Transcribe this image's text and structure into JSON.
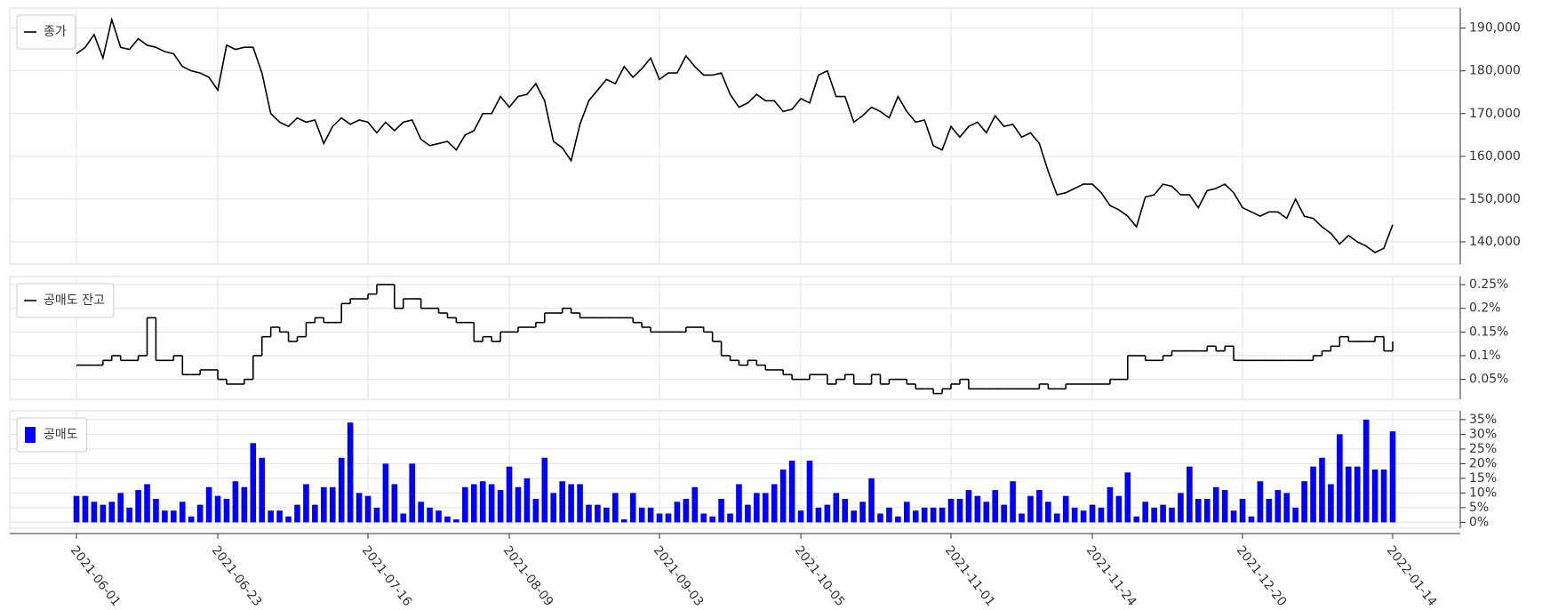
{
  "chart_data": [
    {
      "type": "line",
      "series": [
        {
          "name": "종가",
          "color": "#000000",
          "values": [
            184000,
            185500,
            188500,
            183000,
            192000,
            185500,
            185000,
            187500,
            186000,
            185500,
            184500,
            184000,
            181000,
            180000,
            179500,
            178500,
            175500,
            186000,
            185000,
            185500,
            185500,
            179500,
            170000,
            168000,
            167000,
            169000,
            168000,
            168500,
            163000,
            167000,
            169000,
            167500,
            168500,
            168000,
            165500,
            168000,
            166000,
            168000,
            168500,
            164000,
            162500,
            163000,
            163500,
            161500,
            165000,
            166000,
            170000,
            170000,
            174000,
            171500,
            174000,
            174500,
            177000,
            173000,
            163500,
            162000,
            159000,
            167500,
            173000,
            175500,
            178000,
            177000,
            181000,
            178500,
            180500,
            183000,
            178000,
            179500,
            179500,
            183500,
            181000,
            179000,
            179000,
            179500,
            174500,
            171500,
            172500,
            174500,
            173000,
            173000,
            170500,
            171000,
            173500,
            172500,
            179000,
            180000,
            174000,
            174000,
            168000,
            169500,
            171500,
            170500,
            169000,
            174000,
            170500,
            168000,
            168500,
            162500,
            161500,
            167000,
            164500,
            167000,
            168000,
            165500,
            169500,
            167000,
            167500,
            164500,
            165500,
            163000,
            156500,
            151000,
            151500,
            152500,
            153500,
            153500,
            151500,
            148500,
            147500,
            146000,
            143500,
            150500,
            151000,
            153500,
            153000,
            151000,
            151000,
            148000,
            152000,
            152500,
            153500,
            151500,
            148000,
            147000,
            146000,
            147000,
            147000,
            145500,
            150000,
            146000,
            145500,
            143500,
            142000,
            139500,
            141500,
            140000,
            139000,
            137500,
            138500,
            144000
          ]
        }
      ],
      "ylim": [
        134800,
        194700
      ],
      "yticks": [
        {
          "value": 140000,
          "label": "140,000"
        },
        {
          "value": 150000,
          "label": "150,000"
        },
        {
          "value": 160000,
          "label": "160,000"
        },
        {
          "value": 170000,
          "label": "170,000"
        },
        {
          "value": 180000,
          "label": "180,000"
        },
        {
          "value": 190000,
          "label": "190,000"
        }
      ],
      "grid": true,
      "legend": "upper-left"
    },
    {
      "type": "step",
      "series": [
        {
          "name": "공매도 잔고",
          "color": "#000000",
          "values": [
            0.08,
            0.08,
            0.08,
            0.09,
            0.1,
            0.09,
            0.09,
            0.1,
            0.18,
            0.09,
            0.09,
            0.1,
            0.06,
            0.06,
            0.07,
            0.07,
            0.05,
            0.04,
            0.04,
            0.05,
            0.1,
            0.14,
            0.16,
            0.15,
            0.13,
            0.14,
            0.17,
            0.18,
            0.17,
            0.17,
            0.21,
            0.22,
            0.22,
            0.23,
            0.25,
            0.25,
            0.2,
            0.22,
            0.22,
            0.2,
            0.2,
            0.19,
            0.18,
            0.17,
            0.17,
            0.13,
            0.14,
            0.13,
            0.15,
            0.15,
            0.16,
            0.16,
            0.17,
            0.19,
            0.19,
            0.2,
            0.19,
            0.18,
            0.18,
            0.18,
            0.18,
            0.18,
            0.18,
            0.17,
            0.16,
            0.15,
            0.15,
            0.15,
            0.15,
            0.16,
            0.16,
            0.15,
            0.13,
            0.1,
            0.09,
            0.08,
            0.09,
            0.08,
            0.07,
            0.07,
            0.06,
            0.05,
            0.05,
            0.06,
            0.06,
            0.04,
            0.05,
            0.06,
            0.04,
            0.04,
            0.06,
            0.04,
            0.05,
            0.05,
            0.04,
            0.03,
            0.03,
            0.02,
            0.03,
            0.04,
            0.05,
            0.03,
            0.03,
            0.03,
            0.03,
            0.03,
            0.03,
            0.03,
            0.03,
            0.04,
            0.03,
            0.03,
            0.04,
            0.04,
            0.04,
            0.04,
            0.04,
            0.05,
            0.05,
            0.1,
            0.1,
            0.09,
            0.09,
            0.1,
            0.11,
            0.11,
            0.11,
            0.11,
            0.12,
            0.11,
            0.12,
            0.09,
            0.09,
            0.09,
            0.09,
            0.09,
            0.09,
            0.09,
            0.09,
            0.09,
            0.1,
            0.11,
            0.12,
            0.14,
            0.13,
            0.13,
            0.13,
            0.14,
            0.11,
            0.13
          ]
        }
      ],
      "ylim": [
        0.008,
        0.267
      ],
      "yticks": [
        {
          "value": 0.05,
          "label": "0.05%"
        },
        {
          "value": 0.1,
          "label": "0.1%"
        },
        {
          "value": 0.15,
          "label": "0.15%"
        },
        {
          "value": 0.2,
          "label": "0.2%"
        },
        {
          "value": 0.25,
          "label": "0.25%"
        }
      ],
      "grid": true,
      "legend": "upper-left"
    },
    {
      "type": "bar",
      "categories": [
        "2021-06-01",
        null,
        null,
        null,
        null,
        null,
        null,
        null,
        null,
        null,
        null,
        null,
        null,
        null,
        null,
        null,
        "2021-06-23",
        null,
        null,
        null,
        null,
        null,
        null,
        null,
        null,
        null,
        null,
        null,
        null,
        null,
        null,
        null,
        null,
        "2021-07-16",
        null,
        null,
        null,
        null,
        null,
        null,
        null,
        null,
        null,
        null,
        null,
        null,
        null,
        null,
        null,
        "2021-08-09",
        null,
        null,
        null,
        null,
        null,
        null,
        null,
        null,
        null,
        null,
        null,
        null,
        null,
        null,
        null,
        null,
        "2021-09-03",
        null,
        null,
        null,
        null,
        null,
        null,
        null,
        null,
        null,
        null,
        null,
        null,
        null,
        null,
        null,
        "2021-10-05",
        null,
        null,
        null,
        null,
        null,
        null,
        null,
        null,
        null,
        null,
        null,
        null,
        null,
        null,
        null,
        null,
        "2021-11-01",
        null,
        null,
        null,
        null,
        null,
        null,
        null,
        null,
        null,
        null,
        null,
        null,
        null,
        null,
        null,
        "2021-11-24",
        null,
        null,
        null,
        null,
        null,
        null,
        null,
        null,
        null,
        null,
        null,
        null,
        null,
        null,
        null,
        null,
        "2021-12-20",
        null,
        null,
        null,
        null,
        null,
        null,
        null,
        null,
        null,
        null,
        null,
        null,
        null,
        null,
        null,
        null,
        "2022-01-14"
      ],
      "series": [
        {
          "name": "공매도",
          "color": "#0000ff",
          "values": [
            9,
            9,
            7,
            6,
            7,
            10,
            5,
            11,
            13,
            8,
            4,
            4,
            7,
            2,
            6,
            12,
            9,
            8,
            14,
            12,
            27,
            22,
            4,
            4,
            2,
            6,
            13,
            6,
            12,
            12,
            22,
            34,
            10,
            9,
            5,
            20,
            13,
            3,
            20,
            7,
            5,
            4,
            2,
            1,
            12,
            13,
            14,
            13,
            11,
            19,
            12,
            15,
            8,
            22,
            10,
            14,
            13,
            13,
            6,
            6,
            5,
            10,
            1,
            10,
            5,
            5,
            3,
            3,
            7,
            8,
            12,
            3,
            2,
            8,
            3,
            13,
            6,
            10,
            10,
            13,
            18,
            21,
            4,
            21,
            5,
            6,
            10,
            8,
            4,
            7,
            15,
            3,
            5,
            2,
            7,
            4,
            5,
            5,
            5,
            8,
            8,
            11,
            9,
            7,
            11,
            6,
            14,
            3,
            9,
            11,
            7,
            3,
            9,
            5,
            4,
            6,
            5,
            12,
            9,
            17,
            2,
            7,
            5,
            6,
            5,
            10,
            19,
            8,
            8,
            12,
            11,
            4,
            8,
            2,
            14,
            8,
            11,
            10,
            5,
            14,
            19,
            22,
            13,
            30,
            19,
            19,
            35,
            18,
            18,
            31
          ]
        }
      ],
      "ylim": [
        -2,
        38
      ],
      "yticks": [
        {
          "value": 0,
          "label": "0%"
        },
        {
          "value": 5,
          "label": "5%"
        },
        {
          "value": 10,
          "label": "10%"
        },
        {
          "value": 15,
          "label": "15%"
        },
        {
          "value": 20,
          "label": "20%"
        },
        {
          "value": 25,
          "label": "25%"
        },
        {
          "value": 30,
          "label": "30%"
        },
        {
          "value": 35,
          "label": "35%"
        }
      ],
      "grid": true,
      "legend": "upper-left"
    }
  ]
}
